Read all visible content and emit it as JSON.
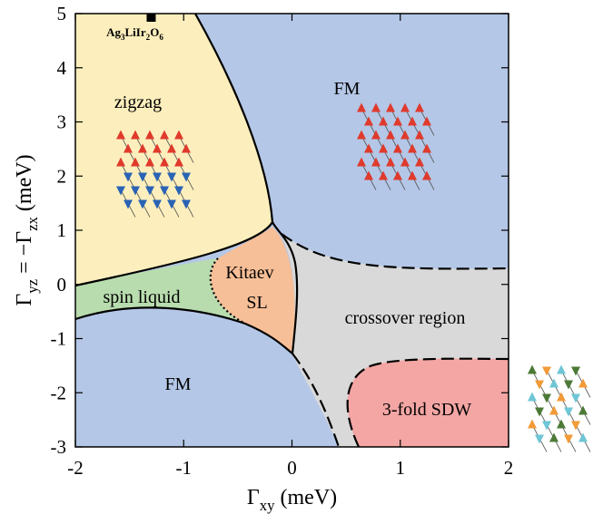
{
  "chart_data": {
    "type": "phase-diagram",
    "xlim": [
      -2,
      2
    ],
    "ylim": [
      -3,
      5
    ],
    "xticks": [
      -2,
      -1,
      0,
      1,
      2
    ],
    "yticks": [
      -3,
      -2,
      -1,
      0,
      1,
      2,
      3,
      4,
      5
    ],
    "xlabel": [
      {
        "text": "Γ"
      },
      {
        "text": "xy",
        "sub": true
      },
      {
        "text": " (meV)"
      }
    ],
    "ylabel": [
      {
        "text": "Γ"
      },
      {
        "text": "yz",
        "sub": true
      },
      {
        "text": " = −Γ"
      },
      {
        "text": "zx",
        "sub": true
      },
      {
        "text": " (meV)"
      }
    ],
    "regions": [
      "zigzag",
      "FM",
      "spin liquid",
      "Kitaev",
      "SL",
      "crossover region",
      "FM",
      "3-fold SDW"
    ],
    "points": [
      {
        "x": -1.3,
        "y": 5,
        "color": "#000000",
        "label": [
          {
            "text": "Ag"
          },
          {
            "text": "3",
            "sub": true
          },
          {
            "text": "LiIr"
          },
          {
            "text": "2",
            "sub": true
          },
          {
            "text": "O"
          },
          {
            "text": "6",
            "sub": true
          }
        ]
      }
    ]
  }
}
